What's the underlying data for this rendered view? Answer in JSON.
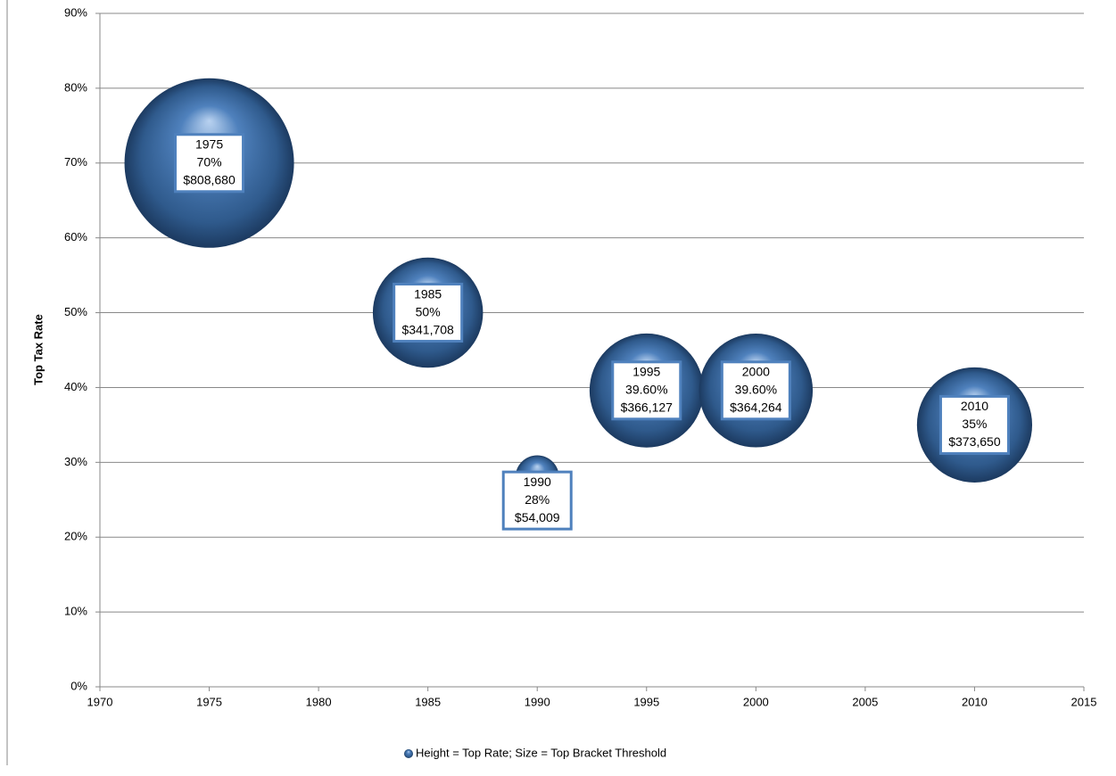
{
  "chart_data": {
    "type": "bubble",
    "y_label": "Top Tax Rate",
    "xlim": [
      1970,
      2015
    ],
    "xticks": [
      1970,
      1975,
      1980,
      1985,
      1990,
      1995,
      2000,
      2005,
      2010,
      2015
    ],
    "ylim": [
      0,
      90
    ],
    "yticks": [
      {
        "value": 0,
        "label": "0%"
      },
      {
        "value": 10,
        "label": "10%"
      },
      {
        "value": 20,
        "label": "20%"
      },
      {
        "value": 30,
        "label": "30%"
      },
      {
        "value": 40,
        "label": "40%"
      },
      {
        "value": 50,
        "label": "50%"
      },
      {
        "value": 60,
        "label": "60%"
      },
      {
        "value": 70,
        "label": "70%"
      },
      {
        "value": 80,
        "label": "80%"
      },
      {
        "value": 90,
        "label": "90%"
      }
    ],
    "grid": true,
    "legend": "bottom",
    "series": [
      {
        "name": "Height = Top Rate; Size = Top Bracket Threshold",
        "color": "#4f81bd",
        "x": [
          1975,
          1985,
          1990,
          1995,
          2000,
          2010
        ],
        "values": [
          70,
          50,
          28,
          39.6,
          39.6,
          35
        ],
        "value_labels": [
          "70%",
          "50%",
          "28%",
          "39.60%",
          "39.60%",
          "35%"
        ],
        "sizes": [
          808680,
          341708,
          54009,
          366127,
          364264,
          373650
        ],
        "size_labels": [
          "$808,680",
          "$341,708",
          "$54,009",
          "$366,127",
          "$364,264",
          "$373,650"
        ]
      }
    ]
  }
}
